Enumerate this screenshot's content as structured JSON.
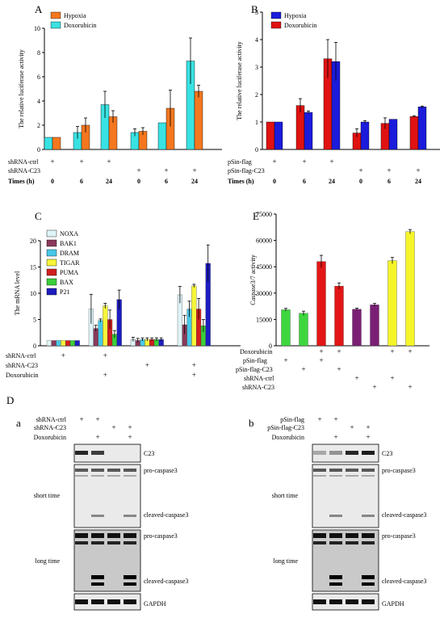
{
  "panel_labels": {
    "A": "A",
    "B": "B",
    "C": "C",
    "E": "E",
    "D": "D",
    "Da": "a",
    "Db": "b"
  },
  "colors": {
    "cyan": "#39e2e2",
    "orange": "#f4771f",
    "blue": "#1b1bdb",
    "red": "#e01212",
    "NOXA": "#dff4f7",
    "BAK1": "#8a3a5a",
    "DRAM": "#48c8e8",
    "TIGAR": "#f5f53a",
    "PUMA": "#d11f1f",
    "BAX": "#3ad03a",
    "P21": "#1d1dc0",
    "e_green": "#3ed63e",
    "e_red": "#e31616",
    "e_purple": "#7a1f74",
    "e_yellow": "#f5f52a"
  },
  "rowlabels": {
    "A": [
      "shRNA-ctrl",
      "shRNA-C23",
      "Times (h)"
    ],
    "B": [
      "pSin-flag",
      "pSin-flag-C23",
      "Times (h)"
    ],
    "C": [
      "shRNA-ctrl",
      "shRNA-C23",
      "Doxorubicin"
    ],
    "E": [
      "Doxorubicin",
      "pSin-flag",
      "pSin-flag-C23",
      "shRNA-ctrl",
      "shRNA-C23"
    ],
    "Da": [
      "shRNA-ctrl",
      "shRNA-C23",
      "Doxorubicin"
    ],
    "Db": [
      "pSin-flag",
      "pSin-flag-C23",
      "Doxorubicin"
    ]
  },
  "plus": "+",
  "blot": {
    "bands": [
      "C23",
      "pro-caspase3",
      "cleaved-caspase3",
      "pro-caspase3",
      "cleaved-caspase3",
      "GAPDH"
    ],
    "sections": [
      "short time",
      "long time"
    ]
  },
  "chart_data": [
    {
      "panel": "A",
      "type": "bar",
      "ylabel": "The relative luciferase activity",
      "ylim": [
        0,
        10
      ],
      "yticks": [
        0,
        2,
        4,
        6,
        8,
        10
      ],
      "x": [
        "0",
        "6",
        "24",
        "0",
        "6",
        "24"
      ],
      "series": [
        {
          "name": "Hypoxia",
          "color": "#f4771f",
          "values": [
            1.0,
            2.0,
            2.7,
            1.5,
            3.4,
            4.8
          ],
          "errors": [
            0,
            0.6,
            0.5,
            0.3,
            1.5,
            0.5
          ]
        },
        {
          "name": "Doxorubicin",
          "color": "#39e2e2",
          "values": [
            1.0,
            1.4,
            3.7,
            1.4,
            2.2,
            7.3
          ],
          "errors": [
            0,
            0.5,
            1.1,
            0.3,
            0,
            1.9
          ]
        }
      ],
      "conditions": {
        "shRNA-ctrl": [
          1,
          1,
          1,
          0,
          0,
          0
        ],
        "shRNA-C23": [
          0,
          0,
          0,
          1,
          1,
          1
        ]
      }
    },
    {
      "panel": "B",
      "type": "bar",
      "ylabel": "The relative luciferase activity",
      "ylim": [
        0,
        5
      ],
      "yticks": [
        0,
        1,
        2,
        3,
        4,
        5
      ],
      "x": [
        "0",
        "6",
        "24",
        "0",
        "6",
        "24"
      ],
      "series": [
        {
          "name": "Hypoxia",
          "color": "#1b1bdb",
          "values": [
            1.0,
            1.35,
            3.2,
            1.0,
            1.1,
            1.55
          ],
          "errors": [
            0,
            0.05,
            0.7,
            0.05,
            0,
            0.03
          ]
        },
        {
          "name": "Doxorubicin",
          "color": "#e01212",
          "values": [
            1.0,
            1.6,
            3.3,
            0.6,
            0.95,
            1.2
          ],
          "errors": [
            0,
            0.25,
            0.7,
            0.15,
            0.2,
            0.03
          ]
        }
      ],
      "conditions": {
        "pSin-flag": [
          1,
          1,
          1,
          0,
          0,
          0
        ],
        "pSin-flag-C23": [
          0,
          0,
          0,
          1,
          1,
          1
        ]
      }
    },
    {
      "panel": "C",
      "type": "bar",
      "ylabel": "The mRNA level",
      "ylim": [
        0,
        20
      ],
      "yticks": [
        0,
        5,
        10,
        15,
        20
      ],
      "groups": 4,
      "series": [
        {
          "name": "NOXA",
          "values": [
            1,
            7.0,
            1.2,
            9.7
          ],
          "errors": [
            0,
            2.8,
            0.4,
            1.6
          ]
        },
        {
          "name": "BAK1",
          "values": [
            1,
            3.3,
            1.0,
            4.0
          ],
          "errors": [
            0,
            0.6,
            0.4,
            1.8
          ]
        },
        {
          "name": "DRAM",
          "values": [
            1,
            4.8,
            1.2,
            7.0
          ],
          "errors": [
            0,
            0.3,
            0.3,
            1.5
          ]
        },
        {
          "name": "TIGAR",
          "values": [
            1,
            7.6,
            1.2,
            11.4
          ],
          "errors": [
            0,
            0.5,
            0.3,
            0.3
          ]
        },
        {
          "name": "PUMA",
          "values": [
            1,
            5.0,
            1.2,
            7.0
          ],
          "errors": [
            0,
            1.8,
            0.3,
            2.0
          ]
        },
        {
          "name": "BAX",
          "values": [
            1,
            2.2,
            1.2,
            3.8
          ],
          "errors": [
            0,
            0.7,
            0.3,
            1.2
          ]
        },
        {
          "name": "P21",
          "values": [
            1,
            8.8,
            1.2,
            15.7
          ],
          "errors": [
            0,
            1.8,
            0.3,
            3.5
          ]
        }
      ],
      "conditions": {
        "shRNA-ctrl": [
          1,
          1,
          0,
          0
        ],
        "shRNA-C23": [
          0,
          0,
          1,
          1
        ],
        "Doxorubicin": [
          0,
          1,
          0,
          1
        ]
      }
    },
    {
      "panel": "E",
      "type": "bar",
      "ylabel": "Caspase3/7 activity",
      "ylim": [
        0,
        75000
      ],
      "yticks": [
        0,
        15000,
        30000,
        45000,
        60000,
        75000
      ],
      "values": [
        20500,
        18500,
        48000,
        34000,
        20800,
        23300,
        48500,
        65000
      ],
      "errors": [
        800,
        1200,
        3500,
        1800,
        600,
        800,
        1800,
        1200
      ],
      "colors": [
        "#3ed63e",
        "#3ed63e",
        "#e31616",
        "#e31616",
        "#7a1f74",
        "#7a1f74",
        "#f5f52a",
        "#f5f52a"
      ],
      "conditions": {
        "Doxorubicin": [
          0,
          0,
          1,
          1,
          0,
          0,
          1,
          1
        ],
        "pSin-flag": [
          1,
          0,
          1,
          0,
          0,
          0,
          0,
          0
        ],
        "pSin-flag-C23": [
          0,
          1,
          0,
          1,
          0,
          0,
          0,
          0
        ],
        "shRNA-ctrl": [
          0,
          0,
          0,
          0,
          1,
          0,
          1,
          0
        ],
        "shRNA-C23": [
          0,
          0,
          0,
          0,
          0,
          1,
          0,
          1
        ]
      }
    }
  ]
}
